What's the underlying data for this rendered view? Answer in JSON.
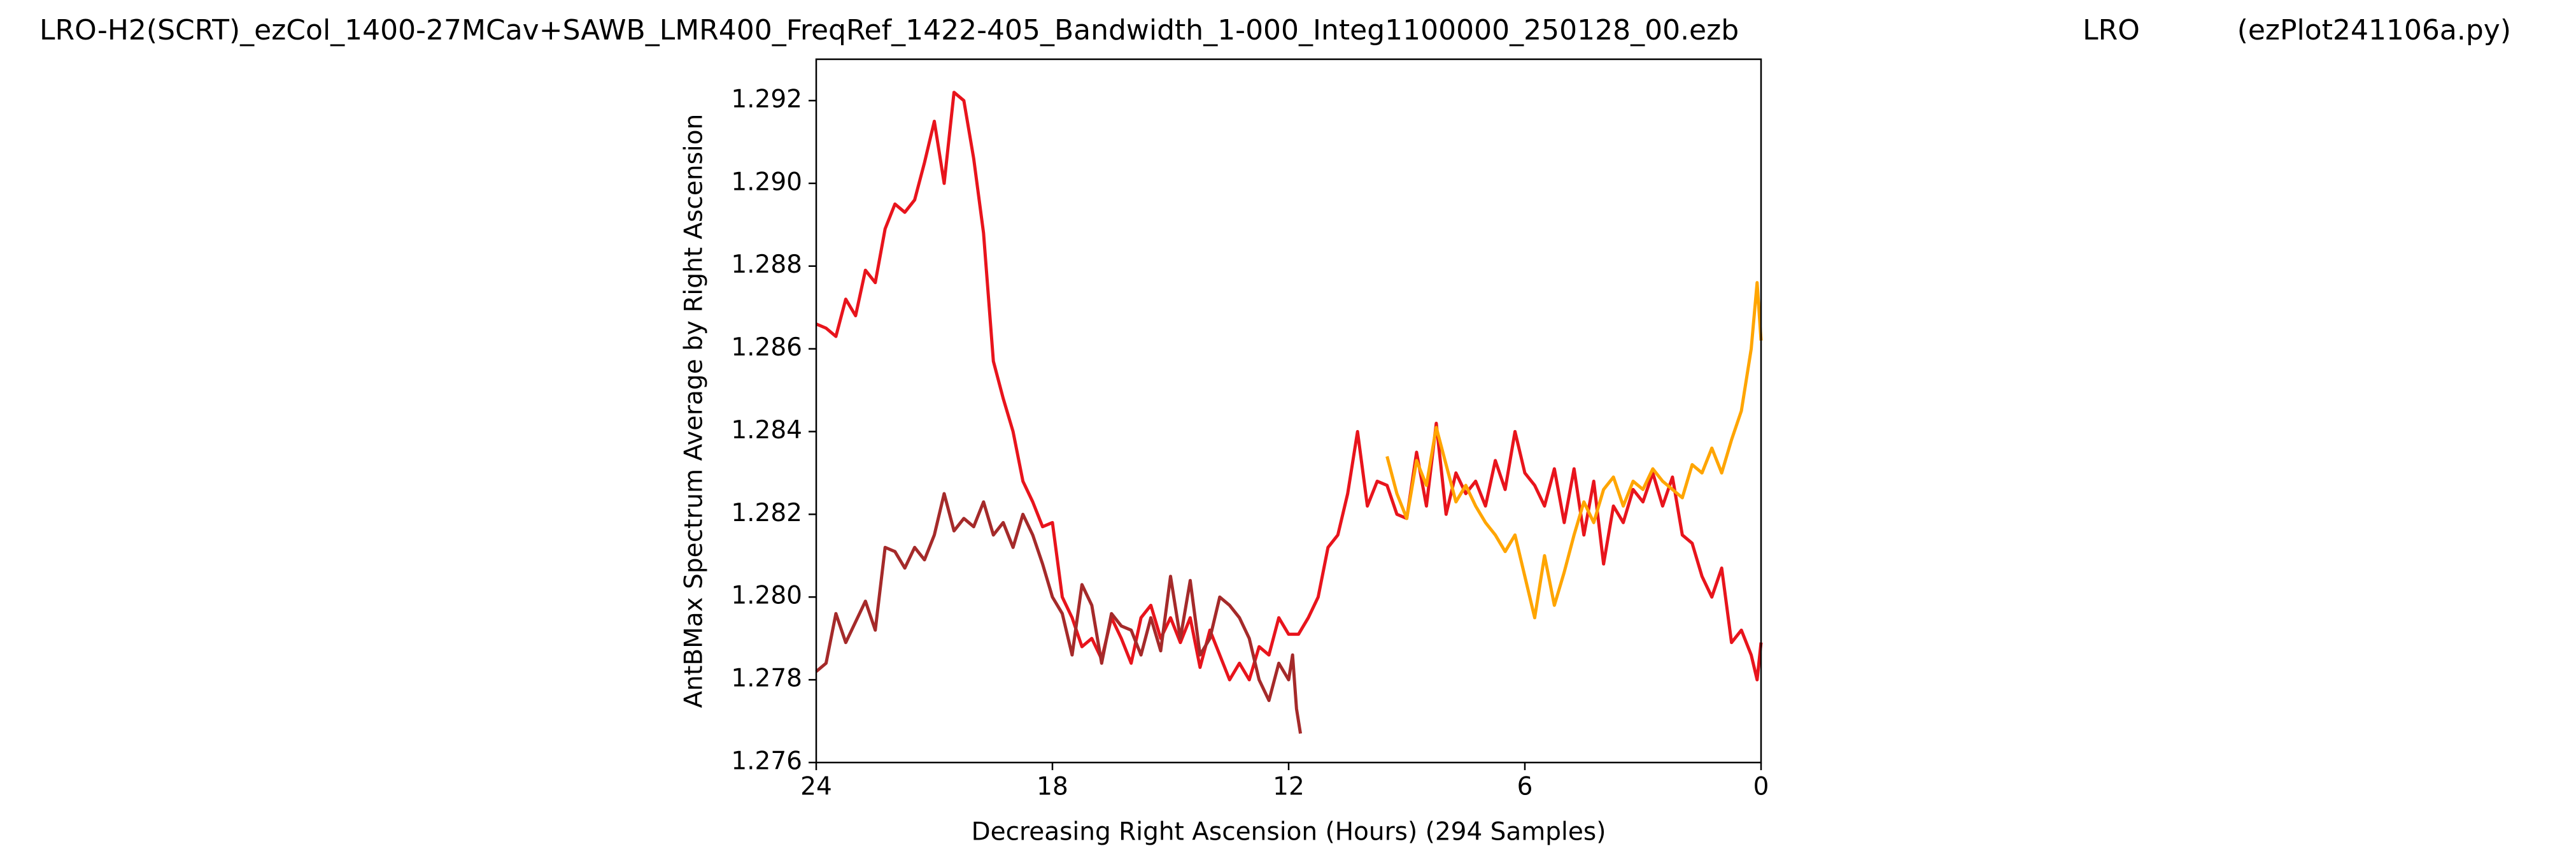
{
  "chart_data": {
    "type": "line",
    "title_left": "LRO-H2(SCRT)_ezCol_1400-27MCav+SAWB_LMR400_FreqRef_1422-405_Bandwidth_1-000_Integ1100000_250128_00.ezb",
    "title_center": "LRO",
    "title_right": "(ezPlot241106a.py)",
    "xlabel": "Decreasing Right Ascension (Hours) (294 Samples)",
    "ylabel": "AntBMax Spectrum Average by Right Ascension",
    "xlim": [
      24,
      0
    ],
    "xticks": [
      24,
      18,
      12,
      6,
      0
    ],
    "ylim": [
      1.276,
      1.293
    ],
    "yticks": [
      1.276,
      1.278,
      {
        "value": 1.28,
        "label": "1.280"
      },
      1.282,
      1.284,
      1.286,
      1.288,
      {
        "value": 1.29,
        "label": "1.290"
      },
      1.292
    ],
    "series": [
      {
        "color": "#e8141c",
        "x": [
          24,
          23.75,
          23.5,
          23.25,
          23,
          22.75,
          22.5,
          22.25,
          22,
          21.75,
          21.5,
          21.25,
          21,
          20.75,
          20.5,
          20.25,
          20,
          19.75,
          19.5,
          19.25,
          19,
          18.75,
          18.5,
          18.25,
          18,
          17.75,
          17.5,
          17.25,
          17,
          16.75,
          16.5,
          16.25,
          16,
          15.75,
          15.5,
          15.25,
          15,
          14.75,
          14.5,
          14.25,
          14,
          13.75,
          13.5,
          13.25,
          13,
          12.75,
          12.5,
          12.25,
          12,
          11.75,
          11.5,
          11.25,
          11,
          10.75,
          10.5,
          10.25,
          10,
          9.75,
          9.5,
          9.25,
          9,
          8.75,
          8.5,
          8.25,
          8,
          7.75,
          7.5,
          7.25,
          7,
          6.75,
          6.5,
          6.25,
          6,
          5.75,
          5.5,
          5.25,
          5,
          4.75,
          4.5,
          4.25,
          4,
          3.75,
          3.5,
          3.25,
          3,
          2.75,
          2.5,
          2.25,
          2,
          1.75,
          1.5,
          1.25,
          1,
          0.75,
          0.5,
          0.25,
          0.1,
          0
        ],
        "values": [
          1.2866,
          1.2865,
          1.2863,
          1.2872,
          1.2868,
          1.2879,
          1.2876,
          1.2889,
          1.2895,
          1.2893,
          1.2896,
          1.2905,
          1.2915,
          1.29,
          1.2922,
          1.292,
          1.2906,
          1.2888,
          1.2857,
          1.2848,
          1.284,
          1.2828,
          1.2823,
          1.2817,
          1.2818,
          1.28,
          1.2795,
          1.2788,
          1.279,
          1.2785,
          1.2795,
          1.279,
          1.2784,
          1.2795,
          1.2798,
          1.279,
          1.2795,
          1.2789,
          1.2795,
          1.2783,
          1.2792,
          1.2786,
          1.278,
          1.2784,
          1.278,
          1.2788,
          1.2786,
          1.2795,
          1.2791,
          1.2791,
          1.2795,
          1.28,
          1.2812,
          1.2815,
          1.2825,
          1.284,
          1.2822,
          1.2828,
          1.2827,
          1.282,
          1.2819,
          1.2835,
          1.2822,
          1.2842,
          1.282,
          1.283,
          1.2825,
          1.2828,
          1.2822,
          1.2833,
          1.2826,
          1.284,
          1.283,
          1.2827,
          1.2822,
          1.2831,
          1.2818,
          1.2831,
          1.2815,
          1.2828,
          1.2808,
          1.2822,
          1.2818,
          1.2826,
          1.2823,
          1.283,
          1.2822,
          1.2829,
          1.2815,
          1.2813,
          1.2805,
          1.28,
          1.2807,
          1.2789,
          1.2792,
          1.2786,
          1.278,
          1.2789
        ]
      },
      {
        "color": "#a52a2a",
        "x": [
          24,
          23.75,
          23.5,
          23.25,
          23,
          22.75,
          22.5,
          22.25,
          22,
          21.75,
          21.5,
          21.25,
          21,
          20.75,
          20.5,
          20.25,
          20,
          19.75,
          19.5,
          19.25,
          19,
          18.75,
          18.5,
          18.25,
          18,
          17.75,
          17.5,
          17.25,
          17,
          16.75,
          16.5,
          16.25,
          16,
          15.75,
          15.5,
          15.25,
          15,
          14.75,
          14.5,
          14.25,
          14,
          13.75,
          13.5,
          13.25,
          13,
          12.75,
          12.5,
          12.25,
          12,
          11.9,
          11.8,
          11.7
        ],
        "values": [
          1.2782,
          1.2784,
          1.2796,
          1.2789,
          1.2794,
          1.2799,
          1.2792,
          1.2812,
          1.2811,
          1.2807,
          1.2812,
          1.2809,
          1.2815,
          1.2825,
          1.2816,
          1.2819,
          1.2817,
          1.2823,
          1.2815,
          1.2818,
          1.2812,
          1.282,
          1.2815,
          1.2808,
          1.28,
          1.2796,
          1.2786,
          1.2803,
          1.2798,
          1.2784,
          1.2796,
          1.2793,
          1.2792,
          1.2786,
          1.2795,
          1.2787,
          1.2805,
          1.279,
          1.2804,
          1.2786,
          1.279,
          1.28,
          1.2798,
          1.2795,
          1.279,
          1.278,
          1.2775,
          1.2784,
          1.278,
          1.2786,
          1.2773,
          1.2767
        ]
      },
      {
        "color": "#ffa500",
        "x": [
          9.5,
          9.25,
          9,
          8.75,
          8.5,
          8.25,
          8,
          7.75,
          7.5,
          7.25,
          7,
          6.75,
          6.5,
          6.25,
          6,
          5.75,
          5.5,
          5.25,
          5,
          4.75,
          4.5,
          4.25,
          4,
          3.75,
          3.5,
          3.25,
          3,
          2.75,
          2.5,
          2.25,
          2,
          1.75,
          1.5,
          1.25,
          1,
          0.75,
          0.5,
          0.25,
          0.1,
          0
        ],
        "values": [
          1.2834,
          1.2825,
          1.2819,
          1.2833,
          1.2827,
          1.2841,
          1.2832,
          1.2823,
          1.2827,
          1.2822,
          1.2818,
          1.2815,
          1.2811,
          1.2815,
          1.2805,
          1.2795,
          1.281,
          1.2798,
          1.2806,
          1.2815,
          1.2823,
          1.2818,
          1.2826,
          1.2829,
          1.2822,
          1.2828,
          1.2826,
          1.2831,
          1.2828,
          1.2826,
          1.2824,
          1.2832,
          1.283,
          1.2836,
          1.283,
          1.2838,
          1.2845,
          1.286,
          1.2876,
          1.2862
        ]
      }
    ]
  }
}
